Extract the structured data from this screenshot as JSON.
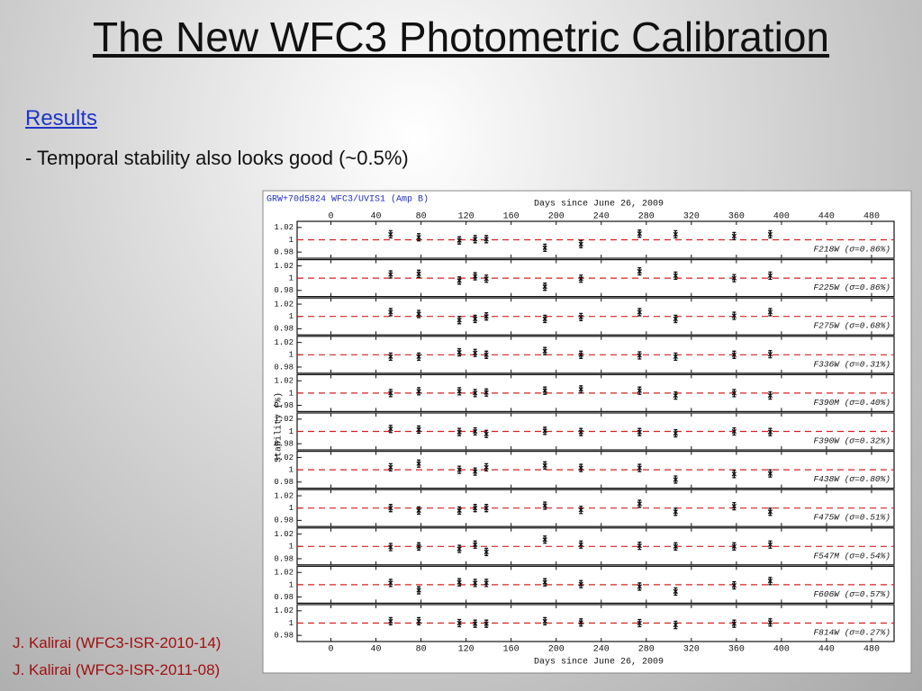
{
  "slide": {
    "title": "The New WFC3 Photometric Calibration",
    "heading": "Results",
    "bullet": "- Temporal stability also looks good (~0.5%)",
    "references": [
      "J. Kalirai (WFC3-ISR-2010-14)",
      "J. Kalirai (WFC3-ISR-2011-08)"
    ]
  },
  "figure": {
    "title": "GRW+70d5824 WFC3/UVIS1 (Amp B)",
    "xlabel": "Days since June 26, 2009",
    "ylabel": "Stability (%)",
    "xlim": [
      -30,
      500
    ],
    "xticks": [
      0,
      40,
      80,
      120,
      160,
      200,
      240,
      280,
      320,
      360,
      400,
      440,
      480
    ],
    "reference_y": 1,
    "reference_color": "#d62020"
  },
  "chart_data": [
    {
      "type": "scatter",
      "label": "F218W (σ=0.86%)",
      "color": "#111111",
      "ylim": [
        0.97,
        1.03
      ],
      "yticks": [
        0.98,
        1,
        1.02
      ],
      "x": [
        53,
        78,
        114,
        128,
        138,
        190,
        222,
        274,
        306,
        358,
        390
      ],
      "values": [
        1.009,
        1.004,
        0.999,
        1.001,
        1.001,
        0.987,
        0.993,
        1.01,
        1.009,
        1.006,
        1.009
      ]
    },
    {
      "type": "scatter",
      "label": "F225W (σ=0.86%)",
      "color": "#111111",
      "ylim": [
        0.97,
        1.03
      ],
      "yticks": [
        0.98,
        1,
        1.02
      ],
      "x": [
        53,
        78,
        114,
        128,
        138,
        190,
        222,
        274,
        306,
        358,
        390
      ],
      "values": [
        1.006,
        1.007,
        0.996,
        1.003,
        0.999,
        0.986,
        0.999,
        1.011,
        1.004,
        1.0,
        1.004
      ]
    },
    {
      "type": "scatter",
      "label": "F275W (σ=0.68%)",
      "color": "#111111",
      "ylim": [
        0.97,
        1.03
      ],
      "yticks": [
        0.98,
        1,
        1.02
      ],
      "x": [
        53,
        78,
        114,
        128,
        138,
        190,
        222,
        274,
        306,
        358,
        390
      ],
      "values": [
        1.007,
        1.004,
        0.994,
        0.996,
        1.0,
        0.996,
        0.999,
        1.007,
        0.996,
        1.001,
        1.007
      ]
    },
    {
      "type": "scatter",
      "label": "F336W (σ=0.31%)",
      "color": "#111111",
      "ylim": [
        0.97,
        1.03
      ],
      "yticks": [
        0.98,
        1,
        1.02
      ],
      "x": [
        53,
        78,
        114,
        128,
        138,
        190,
        222,
        274,
        306,
        358,
        390
      ],
      "values": [
        0.997,
        0.997,
        1.004,
        1.003,
        1.0,
        1.006,
        1.0,
        0.999,
        0.997,
        1.0,
        1.001
      ]
    },
    {
      "type": "scatter",
      "label": "F390M (σ=0.40%)",
      "color": "#111111",
      "ylim": [
        0.97,
        1.03
      ],
      "yticks": [
        0.98,
        1,
        1.02
      ],
      "x": [
        53,
        78,
        114,
        128,
        138,
        190,
        222,
        274,
        306,
        358,
        390
      ],
      "values": [
        1.0,
        1.003,
        1.003,
        1.0,
        1.001,
        1.004,
        1.006,
        1.004,
        0.996,
        1.0,
        0.996
      ]
    },
    {
      "type": "scatter",
      "label": "F390W (σ=0.32%)",
      "color": "#111111",
      "ylim": [
        0.97,
        1.03
      ],
      "yticks": [
        0.98,
        1,
        1.02
      ],
      "x": [
        53,
        78,
        114,
        128,
        138,
        190,
        222,
        274,
        306,
        358,
        390
      ],
      "values": [
        1.004,
        1.003,
        0.999,
        1.0,
        0.996,
        1.001,
        0.999,
        0.999,
        0.997,
        1.0,
        0.999
      ]
    },
    {
      "type": "scatter",
      "label": "F438W (σ=0.80%)",
      "color": "#111111",
      "ylim": [
        0.97,
        1.03
      ],
      "yticks": [
        0.98,
        1,
        1.02
      ],
      "x": [
        53,
        78,
        114,
        128,
        138,
        190,
        222,
        274,
        306,
        358,
        390
      ],
      "values": [
        1.004,
        1.01,
        1.0,
        0.997,
        1.004,
        1.007,
        1.003,
        1.003,
        0.984,
        0.993,
        0.994
      ]
    },
    {
      "type": "scatter",
      "label": "F475W (σ=0.51%)",
      "color": "#111111",
      "ylim": [
        0.97,
        1.03
      ],
      "yticks": [
        0.98,
        1,
        1.02
      ],
      "x": [
        53,
        78,
        114,
        128,
        138,
        190,
        222,
        274,
        306,
        358,
        390
      ],
      "values": [
        1.0,
        0.996,
        0.996,
        1.0,
        1.0,
        1.004,
        0.997,
        1.007,
        0.994,
        1.003,
        0.994
      ]
    },
    {
      "type": "scatter",
      "label": "F547M (σ=0.54%)",
      "color": "#111111",
      "ylim": [
        0.97,
        1.03
      ],
      "yticks": [
        0.98,
        1,
        1.02
      ],
      "x": [
        53,
        78,
        114,
        128,
        138,
        190,
        222,
        274,
        306,
        358,
        390
      ],
      "values": [
        0.999,
        1.0,
        0.996,
        1.003,
        0.991,
        1.011,
        1.003,
        1.001,
        1.0,
        1.0,
        1.003
      ]
    },
    {
      "type": "scatter",
      "label": "F606W (σ=0.57%)",
      "color": "#111111",
      "ylim": [
        0.97,
        1.03
      ],
      "yticks": [
        0.98,
        1,
        1.02
      ],
      "x": [
        53,
        78,
        114,
        128,
        138,
        190,
        222,
        274,
        306,
        358,
        390
      ],
      "values": [
        1.003,
        0.991,
        1.004,
        1.003,
        1.003,
        1.004,
        1.001,
        0.997,
        0.989,
        0.999,
        1.006
      ]
    },
    {
      "type": "scatter",
      "label": "F814W (σ=0.27%)",
      "color": "#111111",
      "ylim": [
        0.97,
        1.03
      ],
      "yticks": [
        0.98,
        1,
        1.02
      ],
      "x": [
        53,
        78,
        114,
        128,
        138,
        190,
        222,
        274,
        306,
        358,
        390
      ],
      "values": [
        1.003,
        1.003,
        1.0,
        0.999,
        0.999,
        1.003,
        1.001,
        1.0,
        0.997,
        0.999,
        1.001
      ]
    }
  ]
}
